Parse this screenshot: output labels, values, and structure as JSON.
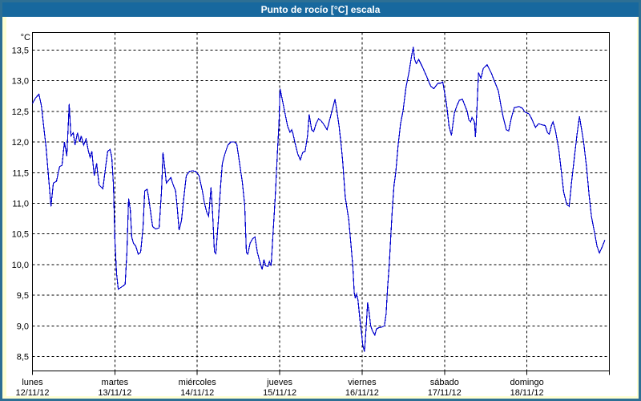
{
  "window": {
    "title": "Punto de rocío [°C] escala"
  },
  "colors": {
    "frame_border": "#2d6f94",
    "titlebar_bg": "#17689e",
    "page_bg": "#ffffd2",
    "plot_bg": "#ffffff",
    "line_color": "#0000cc",
    "grid_color": "#000000",
    "text_color": "#000000"
  },
  "chart_data": {
    "type": "line",
    "title": "Punto de rocío [°C] escala",
    "ylabel": "°C",
    "xlabel": "",
    "grid": "dashed",
    "legend": "none",
    "ylim": [
      8.25,
      13.8
    ],
    "yticks": [
      13.5,
      13.0,
      12.5,
      12.0,
      11.5,
      11.0,
      10.5,
      10.0,
      9.5,
      9.0,
      8.5
    ],
    "ytick_labels": [
      "13,5",
      "13,0",
      "12,5",
      "12,0",
      "11,5",
      "11,0",
      "10,5",
      "10,0",
      "9,5",
      "9,0",
      "8,5"
    ],
    "x_range_hours": [
      0,
      168
    ],
    "x_days": [
      {
        "name": "lunes",
        "date": "12/11/12"
      },
      {
        "name": "martes",
        "date": "13/11/12"
      },
      {
        "name": "miércoles",
        "date": "14/11/12"
      },
      {
        "name": "jueves",
        "date": "15/11/12"
      },
      {
        "name": "viernes",
        "date": "16/11/12"
      },
      {
        "name": "sábado",
        "date": "17/11/12"
      },
      {
        "name": "domingo",
        "date": "18/11/12"
      }
    ],
    "series": [
      {
        "name": "Punto de rocío",
        "unit": "°C",
        "points": [
          [
            0,
            12.63
          ],
          [
            0.9,
            12.72
          ],
          [
            1.9,
            12.78
          ],
          [
            2.6,
            12.6
          ],
          [
            4,
            11.9
          ],
          [
            5.4,
            10.95
          ],
          [
            6.1,
            11.33
          ],
          [
            7,
            11.36
          ],
          [
            7.9,
            11.6
          ],
          [
            8.6,
            11.62
          ],
          [
            9.3,
            12.0
          ],
          [
            10,
            11.77
          ],
          [
            10.7,
            12.62
          ],
          [
            11.2,
            12.1
          ],
          [
            11.9,
            12.15
          ],
          [
            12.4,
            11.95
          ],
          [
            13.1,
            12.15
          ],
          [
            13.8,
            12.0
          ],
          [
            14.2,
            12.1
          ],
          [
            14.9,
            11.95
          ],
          [
            15.6,
            12.05
          ],
          [
            16.3,
            11.85
          ],
          [
            16.8,
            11.75
          ],
          [
            17.3,
            11.85
          ],
          [
            18,
            11.45
          ],
          [
            18.7,
            11.65
          ],
          [
            19.4,
            11.3
          ],
          [
            20.5,
            11.24
          ],
          [
            21.2,
            11.55
          ],
          [
            21.9,
            11.85
          ],
          [
            22.6,
            11.88
          ],
          [
            23.1,
            11.75
          ],
          [
            23.6,
            11.3
          ],
          [
            24,
            10.4
          ],
          [
            24.5,
            9.85
          ],
          [
            25,
            9.6
          ],
          [
            25.6,
            9.62
          ],
          [
            26.4,
            9.65
          ],
          [
            27,
            9.68
          ],
          [
            27.5,
            10.2
          ],
          [
            28,
            11.08
          ],
          [
            28.5,
            10.9
          ],
          [
            28.9,
            10.45
          ],
          [
            29.4,
            10.35
          ],
          [
            30.1,
            10.3
          ],
          [
            30.8,
            10.17
          ],
          [
            31.5,
            10.2
          ],
          [
            32.2,
            10.6
          ],
          [
            32.7,
            11.2
          ],
          [
            33.4,
            11.23
          ],
          [
            33.8,
            11.1
          ],
          [
            34.3,
            10.9
          ],
          [
            35,
            10.62
          ],
          [
            35.9,
            10.58
          ],
          [
            36.9,
            10.6
          ],
          [
            37.6,
            11.2
          ],
          [
            38,
            11.83
          ],
          [
            38.5,
            11.6
          ],
          [
            39,
            11.33
          ],
          [
            39.7,
            11.38
          ],
          [
            40.3,
            11.42
          ],
          [
            41,
            11.3
          ],
          [
            41.7,
            11.2
          ],
          [
            42.2,
            10.9
          ],
          [
            42.7,
            10.56
          ],
          [
            43.4,
            10.72
          ],
          [
            44.1,
            11.1
          ],
          [
            44.8,
            11.45
          ],
          [
            45.7,
            11.52
          ],
          [
            46.6,
            11.53
          ],
          [
            47.6,
            11.52
          ],
          [
            48.5,
            11.45
          ],
          [
            49.5,
            11.2
          ],
          [
            50.1,
            11.0
          ],
          [
            50.8,
            10.85
          ],
          [
            51.3,
            10.79
          ],
          [
            52,
            11.26
          ],
          [
            52.5,
            10.8
          ],
          [
            53,
            10.21
          ],
          [
            53.4,
            10.18
          ],
          [
            54.1,
            10.7
          ],
          [
            54.8,
            11.3
          ],
          [
            55.3,
            11.65
          ],
          [
            56,
            11.8
          ],
          [
            56.9,
            11.95
          ],
          [
            57.8,
            12.0
          ],
          [
            58.8,
            12.0
          ],
          [
            59.5,
            11.97
          ],
          [
            60.2,
            11.7
          ],
          [
            61.1,
            11.35
          ],
          [
            61.8,
            10.97
          ],
          [
            62.3,
            10.2
          ],
          [
            62.7,
            10.17
          ],
          [
            63.4,
            10.35
          ],
          [
            64.1,
            10.42
          ],
          [
            64.8,
            10.45
          ],
          [
            65.5,
            10.2
          ],
          [
            66.2,
            10.05
          ],
          [
            66.9,
            9.92
          ],
          [
            67.4,
            10.08
          ],
          [
            67.9,
            9.98
          ],
          [
            68.6,
            9.97
          ],
          [
            69,
            10.05
          ],
          [
            69.5,
            9.98
          ],
          [
            70,
            10.45
          ],
          [
            70.7,
            11.1
          ],
          [
            71.4,
            11.9
          ],
          [
            71.8,
            12.3
          ],
          [
            72.1,
            12.87
          ],
          [
            73.2,
            12.57
          ],
          [
            74.3,
            12.26
          ],
          [
            75,
            12.16
          ],
          [
            75.5,
            12.2
          ],
          [
            75.9,
            12.13
          ],
          [
            76.6,
            11.95
          ],
          [
            77.3,
            11.8
          ],
          [
            78,
            11.71
          ],
          [
            78.7,
            11.83
          ],
          [
            79.4,
            11.85
          ],
          [
            80.1,
            12.1
          ],
          [
            80.6,
            12.45
          ],
          [
            81.3,
            12.2
          ],
          [
            81.9,
            12.17
          ],
          [
            82.6,
            12.3
          ],
          [
            83.3,
            12.38
          ],
          [
            84,
            12.35
          ],
          [
            84.7,
            12.3
          ],
          [
            85.4,
            12.24
          ],
          [
            85.8,
            12.2
          ],
          [
            86.5,
            12.35
          ],
          [
            87.2,
            12.5
          ],
          [
            87.9,
            12.65
          ],
          [
            88.1,
            12.7
          ],
          [
            88.8,
            12.45
          ],
          [
            89.3,
            12.26
          ],
          [
            90,
            11.9
          ],
          [
            90.4,
            11.65
          ],
          [
            91.1,
            11.1
          ],
          [
            92.1,
            10.74
          ],
          [
            92.8,
            10.3
          ],
          [
            93.3,
            9.96
          ],
          [
            93.7,
            9.54
          ],
          [
            94,
            9.45
          ],
          [
            94.4,
            9.52
          ],
          [
            94.8,
            9.42
          ],
          [
            95.4,
            9.08
          ],
          [
            95.8,
            8.9
          ],
          [
            96.2,
            8.68
          ],
          [
            96.7,
            8.58
          ],
          [
            97.2,
            9.0
          ],
          [
            97.6,
            9.38
          ],
          [
            98.1,
            9.2
          ],
          [
            98.5,
            9.0
          ],
          [
            99,
            8.92
          ],
          [
            99.7,
            8.85
          ],
          [
            100.2,
            8.95
          ],
          [
            100.9,
            8.97
          ],
          [
            101.8,
            8.98
          ],
          [
            102.5,
            9.0
          ],
          [
            103,
            9.2
          ],
          [
            103.4,
            9.6
          ],
          [
            103.9,
            10.0
          ],
          [
            104.4,
            10.5
          ],
          [
            104.8,
            10.9
          ],
          [
            105.3,
            11.3
          ],
          [
            105.8,
            11.5
          ],
          [
            106.5,
            11.95
          ],
          [
            107.2,
            12.3
          ],
          [
            107.9,
            12.5
          ],
          [
            108.8,
            12.9
          ],
          [
            109.7,
            13.15
          ],
          [
            110.4,
            13.4
          ],
          [
            110.9,
            13.55
          ],
          [
            111.3,
            13.35
          ],
          [
            111.8,
            13.28
          ],
          [
            112.5,
            13.35
          ],
          [
            112.9,
            13.3
          ],
          [
            113.6,
            13.22
          ],
          [
            114.8,
            13.07
          ],
          [
            116,
            12.91
          ],
          [
            116.9,
            12.87
          ],
          [
            118.1,
            12.96
          ],
          [
            118.8,
            12.96
          ],
          [
            119.5,
            12.98
          ],
          [
            120.6,
            12.61
          ],
          [
            121.3,
            12.26
          ],
          [
            122,
            12.11
          ],
          [
            122.9,
            12.48
          ],
          [
            123.6,
            12.59
          ],
          [
            124.3,
            12.68
          ],
          [
            125.2,
            12.7
          ],
          [
            125.9,
            12.6
          ],
          [
            126.6,
            12.5
          ],
          [
            127.1,
            12.36
          ],
          [
            127.6,
            12.33
          ],
          [
            128,
            12.4
          ],
          [
            128.7,
            12.33
          ],
          [
            129,
            12.08
          ],
          [
            129.4,
            12.5
          ],
          [
            129.9,
            13.13
          ],
          [
            130.6,
            13.04
          ],
          [
            131.3,
            13.2
          ],
          [
            132.4,
            13.26
          ],
          [
            133.6,
            13.13
          ],
          [
            134.5,
            13.0
          ],
          [
            135.7,
            12.83
          ],
          [
            136.4,
            12.6
          ],
          [
            137.1,
            12.4
          ],
          [
            138,
            12.2
          ],
          [
            138.7,
            12.18
          ],
          [
            139.4,
            12.38
          ],
          [
            140.3,
            12.56
          ],
          [
            141.7,
            12.58
          ],
          [
            142.7,
            12.55
          ],
          [
            143.4,
            12.49
          ],
          [
            144.6,
            12.46
          ],
          [
            145.3,
            12.39
          ],
          [
            146,
            12.3
          ],
          [
            146.5,
            12.24
          ],
          [
            147.4,
            12.3
          ],
          [
            148.4,
            12.28
          ],
          [
            149.3,
            12.27
          ],
          [
            150,
            12.15
          ],
          [
            150.5,
            12.13
          ],
          [
            151.2,
            12.28
          ],
          [
            151.6,
            12.33
          ],
          [
            152.3,
            12.19
          ],
          [
            153.3,
            11.87
          ],
          [
            154,
            11.53
          ],
          [
            154.7,
            11.18
          ],
          [
            155.6,
            10.98
          ],
          [
            156.3,
            10.95
          ],
          [
            157,
            11.35
          ],
          [
            157.9,
            11.79
          ],
          [
            158.6,
            12.13
          ],
          [
            159.3,
            12.42
          ],
          [
            160.5,
            12.0
          ],
          [
            161.4,
            11.57
          ],
          [
            162.1,
            11.14
          ],
          [
            162.8,
            10.78
          ],
          [
            163.7,
            10.52
          ],
          [
            164.4,
            10.3
          ],
          [
            165.1,
            10.19
          ],
          [
            166,
            10.3
          ],
          [
            166.7,
            10.4
          ]
        ]
      }
    ]
  }
}
